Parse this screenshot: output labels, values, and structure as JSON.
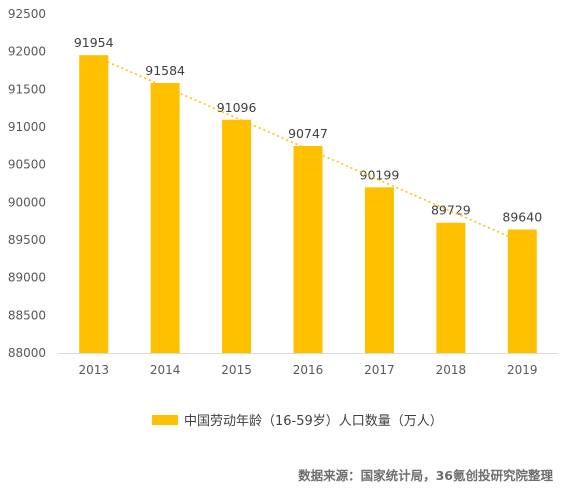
{
  "chart_data": {
    "type": "bar",
    "categories": [
      "2013",
      "2014",
      "2015",
      "2016",
      "2017",
      "2018",
      "2019"
    ],
    "series": [
      {
        "name": "中国劳动年龄（16-59岁）人口数量（万人）",
        "values": [
          91954,
          91584,
          91096,
          90747,
          90199,
          89729,
          89640
        ],
        "color": "#FFC000"
      }
    ],
    "ylim": [
      88000,
      92500
    ],
    "yticks": [
      88000,
      88500,
      89000,
      89500,
      90000,
      90500,
      91000,
      91500,
      92000,
      92500
    ],
    "data_labels": true,
    "trendline": {
      "type": "linear",
      "style": "dotted",
      "color": "#FFC000"
    },
    "grid": false,
    "legend_position": "bottom",
    "title": "",
    "xlabel": "",
    "ylabel": ""
  },
  "source_note": "数据来源：国家统计局，36氪创投研究院整理"
}
